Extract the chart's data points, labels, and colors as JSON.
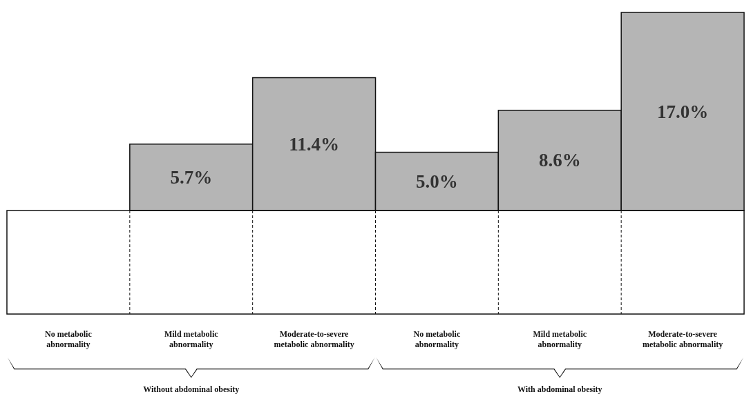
{
  "chart_data": {
    "type": "bar",
    "categories": [
      "No metabolic abnormality",
      "Mild metabolic abnormality",
      "Moderate-to-severe metabolic abnormality",
      "No metabolic abnormality",
      "Mild metabolic abnormality",
      "Moderate-to-severe metabolic abnormality"
    ],
    "values": [
      0,
      5.7,
      11.4,
      5.0,
      8.6,
      17.0
    ],
    "value_labels": [
      null,
      "5.7%",
      "11.4%",
      "5.0%",
      "8.6%",
      "17.0%"
    ],
    "color": "#b5b5b5",
    "annotations": [
      "Without abdominal obesity",
      "With abdominal obesity"
    ]
  }
}
